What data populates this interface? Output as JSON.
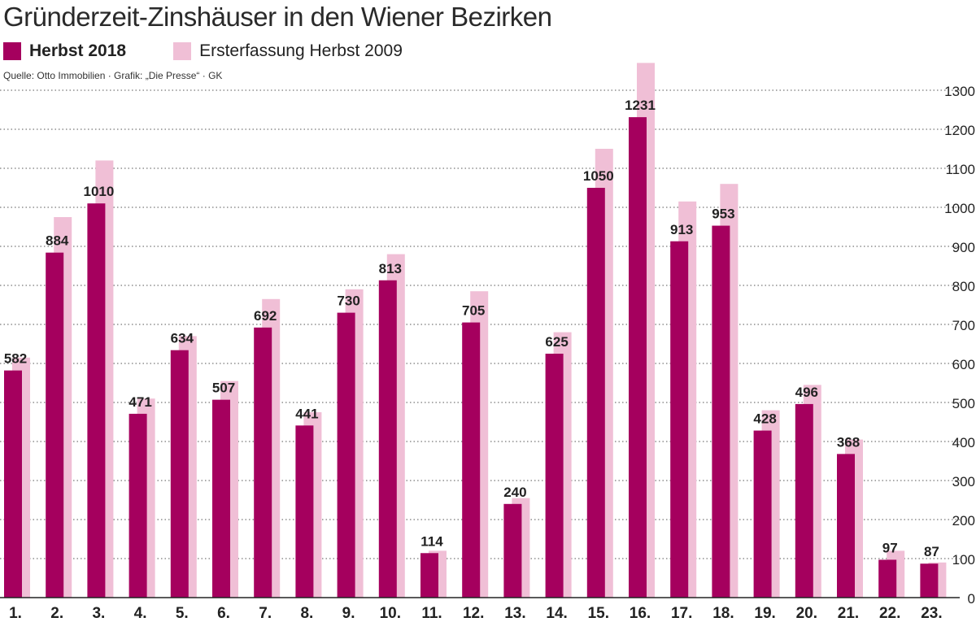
{
  "title": "Gründerzeit-Zinshäuser in den Wiener Bezirken",
  "source": "Quelle: Otto Immobilien · Grafik: „Die Presse“ · GK",
  "colors": {
    "primary": "#a5005e",
    "secondary": "#f0bfd6",
    "grid": "#555555"
  },
  "chart_data": {
    "type": "bar",
    "title": "Gründerzeit-Zinshäuser in den Wiener Bezirken",
    "categories": [
      "1.",
      "2.",
      "3.",
      "4.",
      "5.",
      "6.",
      "7.",
      "8.",
      "9.",
      "10.",
      "11.",
      "12.",
      "13.",
      "14.",
      "15.",
      "16.",
      "17.",
      "18.",
      "19.",
      "20.",
      "21.",
      "22.",
      "23."
    ],
    "series": [
      {
        "name": "Herbst 2018",
        "color": "#a5005e",
        "values": [
          582,
          884,
          1010,
          471,
          634,
          507,
          692,
          441,
          730,
          813,
          114,
          705,
          240,
          625,
          1050,
          1231,
          913,
          953,
          428,
          496,
          368,
          97,
          87
        ]
      },
      {
        "name": "Ersterfassung Herbst 2009",
        "color": "#f0bfd6",
        "values": [
          615,
          975,
          1120,
          510,
          670,
          555,
          765,
          475,
          790,
          880,
          120,
          785,
          255,
          680,
          1150,
          1370,
          1015,
          1060,
          480,
          545,
          405,
          120,
          90
        ]
      }
    ],
    "data_labels": [
      "582",
      "884",
      "1010",
      "471",
      "634",
      "507",
      "692",
      "441",
      "730",
      "813",
      "114",
      "705",
      "240",
      "625",
      "1050",
      "1231",
      "913",
      "953",
      "428",
      "496",
      "368",
      "97",
      "87"
    ],
    "yticks": [
      "0",
      "100",
      "200",
      "300",
      "400",
      "500",
      "600",
      "700",
      "800",
      "900",
      "1000",
      "1100",
      "1200",
      "1300"
    ],
    "ylim": [
      0,
      1350
    ],
    "grid": true,
    "legend_position": "top-left",
    "y_axis_side": "right"
  }
}
